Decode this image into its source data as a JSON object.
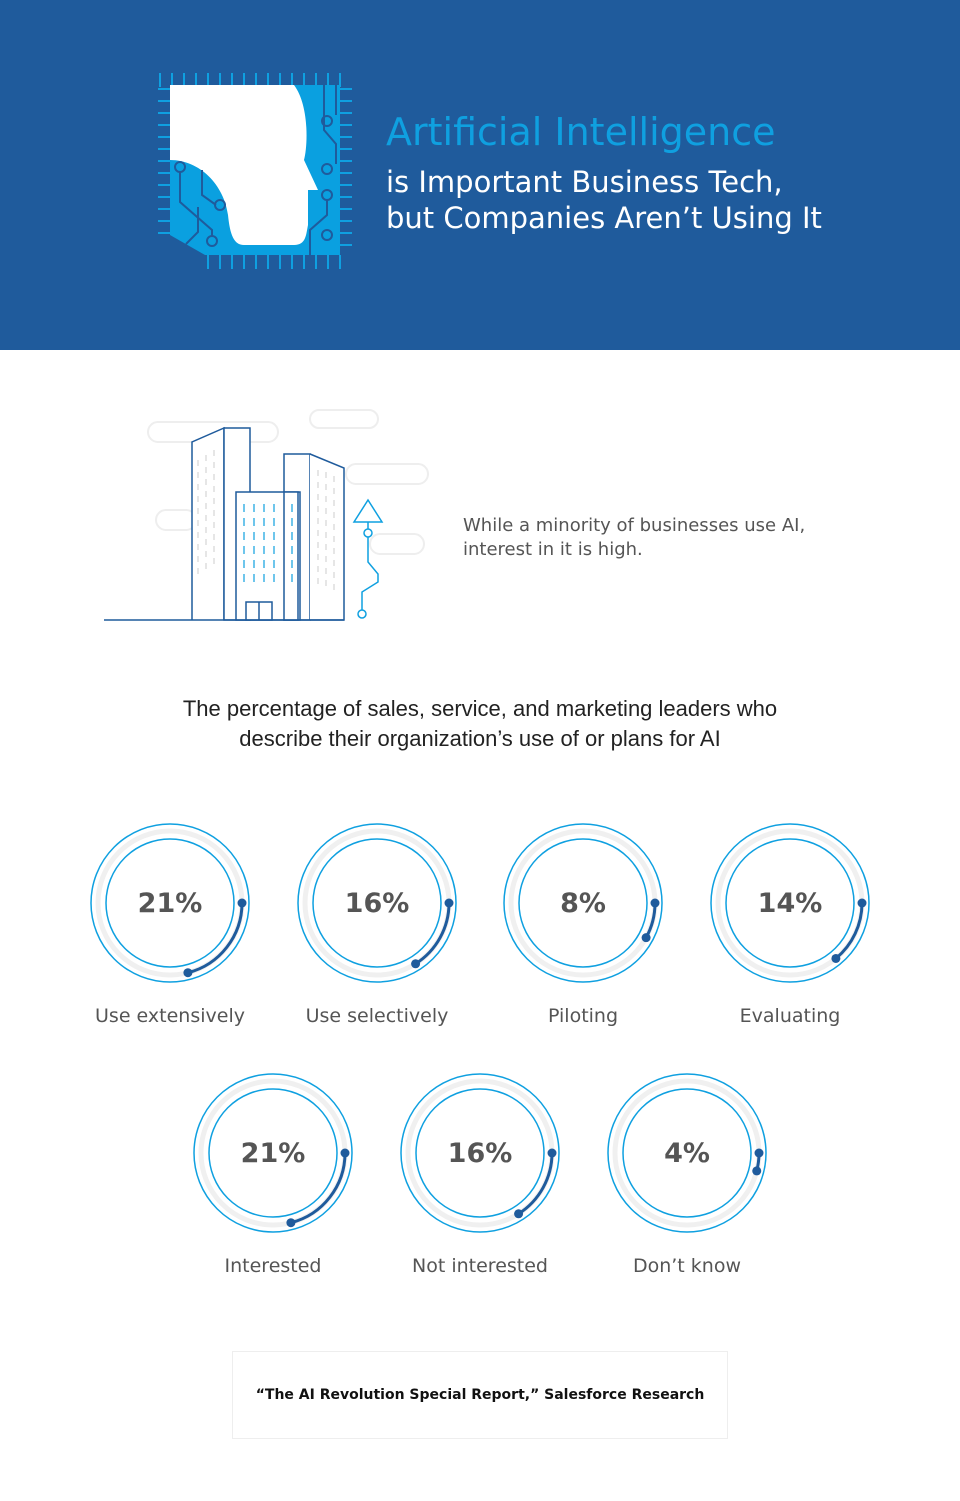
{
  "header": {
    "title": "Artificial Intelligence",
    "subtitle_line1": "is Important Business Tech,",
    "subtitle_line2": "but Companies Aren’t Using It"
  },
  "intro": {
    "line1": "While a minority of businesses use AI,",
    "line2": "interest in it is high."
  },
  "colors": {
    "header_bg": "#1f5b9c",
    "accent": "#0fa0e0",
    "arc": "#1f5b9c"
  },
  "chart_data": {
    "type": "radial",
    "title": "The percentage of sales, service, and marketing leaders who describe their organization’s use of or plans for AI",
    "title_line1": "The percentage of sales, service, and marketing leaders who",
    "title_line2": "describe their organization’s use of or plans for AI",
    "categories": [
      "Use extensively",
      "Use selectively",
      "Piloting",
      "Evaluating",
      "Interested",
      "Not interested",
      "Don’t know"
    ],
    "values": [
      21,
      16,
      8,
      14,
      21,
      16,
      4
    ],
    "labels": [
      "21%",
      "16%",
      "8%",
      "14%",
      "21%",
      "16%",
      "4%"
    ]
  },
  "source": "“The AI Revolution Special Report,” Salesforce Research"
}
